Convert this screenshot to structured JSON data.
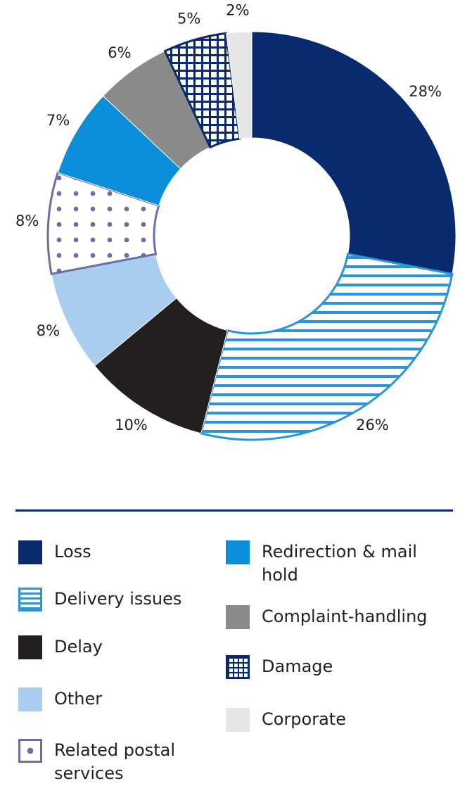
{
  "chart_data": {
    "type": "pie",
    "donut": true,
    "title": "",
    "categories": [
      "Loss",
      "Delivery issues",
      "Delay",
      "Other",
      "Related postal services",
      "Redirection & mail hold",
      "Complaint-handling",
      "Damage",
      "Corporate"
    ],
    "values": [
      28,
      26,
      10,
      8,
      8,
      7,
      6,
      5,
      2
    ],
    "value_labels": [
      "28%",
      "26%",
      "10%",
      "8%",
      "8%",
      "7%",
      "6%",
      "5%",
      "2%"
    ],
    "colors": [
      "#0a2a6e",
      "#2a95d8",
      "#231f20",
      "#a9cdee",
      "#6c6ea8",
      "#0a8ed9",
      "#8a8a8a",
      "#0a2a6e",
      "#e6e6e6"
    ],
    "patterns": [
      "solid",
      "horizontal-stripes",
      "solid",
      "solid",
      "dots",
      "solid",
      "solid",
      "grid",
      "solid"
    ],
    "legend_position": "bottom",
    "grid": false
  },
  "legend": {
    "items": [
      {
        "label": "Loss"
      },
      {
        "label": "Delivery issues"
      },
      {
        "label": "Delay"
      },
      {
        "label": "Other"
      },
      {
        "label": "Related postal services"
      },
      {
        "label": "Redirection & mail hold"
      },
      {
        "label": "Complaint-handling"
      },
      {
        "label": "Damage"
      },
      {
        "label": "Corporate"
      }
    ]
  }
}
